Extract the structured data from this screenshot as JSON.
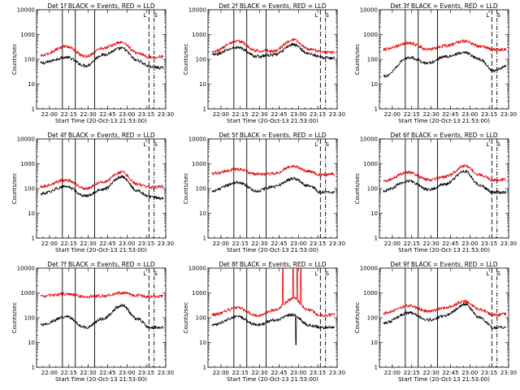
{
  "chart_data": [
    {
      "type": "line",
      "title": "Det 1f BLACK = Events, RED = LLD",
      "xlabel": "Start Time (20-Oct-13 21:53:00)",
      "ylabel": "Counts/sec",
      "ylim": [
        1,
        10000
      ],
      "yscale": "log",
      "xlim_min": [
        -3,
        97
      ],
      "x_tick_labels": [
        "22:00",
        "22:15",
        "22:30",
        "22:45",
        "23:00",
        "23:15",
        "23:30"
      ],
      "x_tick_minutes": [
        7,
        22,
        37,
        52,
        67,
        82,
        97
      ],
      "y_tick_labels": [
        "1",
        "10",
        "100",
        "1000",
        "10000"
      ],
      "vlines_solid_min": [
        17,
        27,
        42
      ],
      "vlines_dashed_min": [
        84
      ],
      "vlines_dashdot_min": [
        88
      ],
      "panel_markers": [
        "L",
        "S"
      ],
      "series": [
        {
          "name": "Events",
          "color": "#000000",
          "key_x": [
            0,
            20,
            35,
            48,
            63,
            75,
            85,
            95
          ],
          "key_y": [
            70,
            120,
            55,
            150,
            280,
            90,
            50,
            45
          ]
        },
        {
          "name": "LLD",
          "color": "#e00000",
          "key_x": [
            0,
            20,
            35,
            48,
            63,
            75,
            85,
            95
          ],
          "key_y": [
            140,
            330,
            130,
            280,
            480,
            180,
            120,
            130
          ]
        }
      ]
    },
    {
      "type": "line",
      "title": "Det 2f BLACK = Events, RED = LLD",
      "xlabel": "Start Time (20-Oct-13 21:53:00)",
      "ylabel": "Counts/sec",
      "ylim": [
        1,
        10000
      ],
      "yscale": "log",
      "xlim_min": [
        -3,
        97
      ],
      "x_tick_labels": [
        "22:00",
        "22:15",
        "22:30",
        "22:45",
        "23:00",
        "23:15",
        "23:30"
      ],
      "x_tick_minutes": [
        7,
        22,
        37,
        52,
        67,
        82,
        97
      ],
      "y_tick_labels": [
        "1",
        "10",
        "100",
        "1000",
        "10000"
      ],
      "vlines_solid_min": [
        17,
        27,
        42
      ],
      "vlines_dashed_min": [
        84
      ],
      "vlines_dashdot_min": [
        88
      ],
      "panel_markers": [
        "L",
        "S"
      ],
      "series": [
        {
          "name": "Events",
          "color": "#000000",
          "key_x": [
            0,
            20,
            35,
            48,
            63,
            75,
            85,
            95
          ],
          "key_y": [
            150,
            300,
            130,
            150,
            400,
            170,
            120,
            110
          ]
        },
        {
          "name": "LLD",
          "color": "#e00000",
          "key_x": [
            0,
            20,
            35,
            48,
            63,
            75,
            85,
            95
          ],
          "key_y": [
            200,
            550,
            220,
            220,
            600,
            260,
            200,
            190
          ]
        }
      ]
    },
    {
      "type": "line",
      "title": "Det 3f BLACK = Events, RED = LLD",
      "xlabel": "Start Time (20-Oct-13 21:53:00)",
      "ylabel": "Counts/sec",
      "ylim": [
        1,
        10000
      ],
      "yscale": "log",
      "xlim_min": [
        -3,
        97
      ],
      "x_tick_labels": [
        "22:00",
        "22:15",
        "22:30",
        "22:45",
        "23:00",
        "23:15",
        "23:30"
      ],
      "x_tick_minutes": [
        7,
        22,
        37,
        52,
        67,
        82,
        97
      ],
      "y_tick_labels": [
        "1",
        "10",
        "100",
        "1000",
        "10000"
      ],
      "vlines_solid_min": [
        17,
        27,
        42
      ],
      "vlines_dashed_min": [
        84
      ],
      "vlines_dashdot_min": [
        88
      ],
      "panel_markers": [
        "L",
        "S"
      ],
      "series": [
        {
          "name": "Events",
          "color": "#000000",
          "key_x": [
            0,
            20,
            35,
            48,
            63,
            75,
            85,
            95
          ],
          "key_y": [
            20,
            120,
            70,
            130,
            180,
            100,
            35,
            50
          ]
        },
        {
          "name": "LLD",
          "color": "#e00000",
          "key_x": [
            0,
            20,
            35,
            48,
            63,
            75,
            85,
            95
          ],
          "key_y": [
            250,
            450,
            250,
            350,
            550,
            330,
            250,
            250
          ]
        }
      ]
    },
    {
      "type": "line",
      "title": "Det 4f BLACK = Events, RED = LLD",
      "xlabel": "Start Time (20-Oct-13 21:53:00)",
      "ylabel": "Counts/sec",
      "ylim": [
        1,
        10000
      ],
      "yscale": "log",
      "xlim_min": [
        -3,
        97
      ],
      "x_tick_labels": [
        "22:00",
        "22:15",
        "22:30",
        "22:45",
        "23:00",
        "23:15",
        "23:30"
      ],
      "x_tick_minutes": [
        7,
        22,
        37,
        52,
        67,
        82,
        97
      ],
      "y_tick_labels": [
        "1",
        "10",
        "100",
        "1000",
        "10000"
      ],
      "vlines_solid_min": [
        17,
        27,
        42
      ],
      "vlines_dashed_min": [
        84
      ],
      "vlines_dashdot_min": [
        88
      ],
      "panel_markers": [
        "L",
        "S"
      ],
      "series": [
        {
          "name": "Events",
          "color": "#000000",
          "key_x": [
            0,
            20,
            35,
            48,
            63,
            75,
            85,
            95
          ],
          "key_y": [
            60,
            120,
            50,
            90,
            300,
            80,
            45,
            40
          ]
        },
        {
          "name": "LLD",
          "color": "#e00000",
          "key_x": [
            0,
            20,
            35,
            48,
            63,
            75,
            85,
            95
          ],
          "key_y": [
            120,
            220,
            100,
            180,
            450,
            150,
            110,
            120
          ]
        }
      ]
    },
    {
      "type": "line",
      "title": "Det 5f BLACK = Events, RED = LLD",
      "xlabel": "Start Time (20-Oct-13 21:53:00)",
      "ylabel": "Counts/sec",
      "ylim": [
        1,
        10000
      ],
      "yscale": "log",
      "xlim_min": [
        -3,
        97
      ],
      "x_tick_labels": [
        "22:00",
        "22:15",
        "22:30",
        "22:45",
        "23:00",
        "23:15",
        "23:30"
      ],
      "x_tick_minutes": [
        7,
        22,
        37,
        52,
        67,
        82,
        97
      ],
      "y_tick_labels": [
        "1",
        "10",
        "100",
        "1000",
        "10000"
      ],
      "vlines_solid_min": [
        17,
        27,
        42
      ],
      "vlines_dashed_min": [
        84
      ],
      "vlines_dashdot_min": [
        88
      ],
      "panel_markers": [
        "L",
        "S"
      ],
      "series": [
        {
          "name": "Events",
          "color": "#000000",
          "key_x": [
            0,
            20,
            35,
            48,
            63,
            75,
            85,
            95
          ],
          "key_y": [
            80,
            180,
            80,
            120,
            250,
            130,
            70,
            70
          ]
        },
        {
          "name": "LLD",
          "color": "#e00000",
          "key_x": [
            0,
            20,
            35,
            48,
            63,
            75,
            85,
            95
          ],
          "key_y": [
            400,
            600,
            380,
            400,
            800,
            500,
            350,
            380
          ]
        }
      ]
    },
    {
      "type": "line",
      "title": "Det 6f BLACK = Events, RED = LLD",
      "xlabel": "Start Time (20-Oct-13 21:53:00)",
      "ylabel": "Counts/sec",
      "ylim": [
        1,
        10000
      ],
      "yscale": "log",
      "xlim_min": [
        -3,
        97
      ],
      "x_tick_labels": [
        "22:00",
        "22:15",
        "22:30",
        "22:45",
        "23:00",
        "23:15",
        "23:30"
      ],
      "x_tick_minutes": [
        7,
        22,
        37,
        52,
        67,
        82,
        97
      ],
      "y_tick_labels": [
        "1",
        "10",
        "100",
        "1000",
        "10000"
      ],
      "vlines_solid_min": [
        17,
        27,
        42
      ],
      "vlines_dashed_min": [
        84
      ],
      "vlines_dashdot_min": [
        88
      ],
      "panel_markers": [
        "L",
        "S"
      ],
      "series": [
        {
          "name": "Events",
          "color": "#000000",
          "key_x": [
            0,
            20,
            35,
            48,
            63,
            75,
            85,
            95
          ],
          "key_y": [
            80,
            200,
            90,
            150,
            500,
            130,
            70,
            70
          ]
        },
        {
          "name": "LLD",
          "color": "#e00000",
          "key_x": [
            0,
            20,
            35,
            48,
            63,
            75,
            85,
            95
          ],
          "key_y": [
            200,
            450,
            220,
            300,
            800,
            350,
            220,
            230
          ]
        }
      ]
    },
    {
      "type": "line",
      "title": "Det 7f BLACK = Events, RED = LLD",
      "xlabel": "Start Time (20-Oct-13 21:53:00)",
      "ylabel": "Counts/sec",
      "ylim": [
        1,
        10000
      ],
      "yscale": "log",
      "xlim_min": [
        -3,
        97
      ],
      "x_tick_labels": [
        "22:00",
        "22:15",
        "22:30",
        "22:45",
        "23:00",
        "23:15",
        "23:30"
      ],
      "x_tick_minutes": [
        7,
        22,
        37,
        52,
        67,
        82,
        97
      ],
      "y_tick_labels": [
        "1",
        "10",
        "100",
        "1000",
        "10000"
      ],
      "vlines_solid_min": [
        17,
        27,
        42
      ],
      "vlines_dashed_min": [
        84
      ],
      "vlines_dashdot_min": [
        88
      ],
      "panel_markers": [
        "L",
        "S"
      ],
      "series": [
        {
          "name": "Events",
          "color": "#000000",
          "key_x": [
            0,
            20,
            35,
            48,
            63,
            75,
            85,
            95
          ],
          "key_y": [
            50,
            110,
            40,
            90,
            320,
            90,
            40,
            40
          ]
        },
        {
          "name": "LLD",
          "color": "#e00000",
          "key_x": [
            0,
            20,
            35,
            48,
            63,
            75,
            85,
            95
          ],
          "key_y": [
            750,
            900,
            700,
            750,
            1000,
            800,
            700,
            720
          ]
        }
      ]
    },
    {
      "type": "line",
      "title": "Det 8f BLACK = Events, RED = LLD",
      "xlabel": "Start Time (20-Oct-13 21:53:00)",
      "ylabel": "Counts/sec",
      "ylim": [
        1,
        10000
      ],
      "yscale": "log",
      "xlim_min": [
        -3,
        97
      ],
      "x_tick_labels": [
        "22:00",
        "22:15",
        "22:30",
        "22:45",
        "23:00",
        "23:15",
        "23:30"
      ],
      "x_tick_minutes": [
        7,
        22,
        37,
        52,
        67,
        82,
        97
      ],
      "y_tick_labels": [
        "1",
        "10",
        "100",
        "1000",
        "10000"
      ],
      "vlines_solid_min": [
        17,
        27,
        42
      ],
      "vlines_dashed_min": [
        84
      ],
      "vlines_dashdot_min": [
        88
      ],
      "panel_markers": [
        "L",
        "S"
      ],
      "series": [
        {
          "name": "Events",
          "color": "#000000",
          "key_x": [
            0,
            20,
            35,
            48,
            63,
            75,
            85,
            95
          ],
          "key_y": [
            50,
            110,
            50,
            80,
            130,
            50,
            40,
            40
          ]
        },
        {
          "name": "LLD",
          "color": "#e00000",
          "key_x": [
            0,
            20,
            35,
            48,
            63,
            75,
            85,
            95
          ],
          "key_y": [
            130,
            250,
            120,
            200,
            600,
            200,
            120,
            130
          ]
        }
      ],
      "spikes": [
        {
          "series": "LLD",
          "x": [
            55,
            63,
            66,
            69
          ],
          "y": 10000
        },
        {
          "series": "Events",
          "x": [
            65
          ],
          "y": 8
        }
      ]
    },
    {
      "type": "line",
      "title": "Det 9f BLACK = Events, RED = LLD",
      "xlabel": "Start Time (20-Oct-13 21:53:00)",
      "ylabel": "Counts/sec",
      "ylim": [
        1,
        10000
      ],
      "yscale": "log",
      "xlim_min": [
        -3,
        97
      ],
      "x_tick_labels": [
        "22:00",
        "22:15",
        "22:30",
        "22:45",
        "23:00",
        "23:15",
        "23:30"
      ],
      "x_tick_minutes": [
        7,
        22,
        37,
        52,
        67,
        82,
        97
      ],
      "y_tick_labels": [
        "1",
        "10",
        "100",
        "1000",
        "10000"
      ],
      "vlines_solid_min": [
        17,
        27,
        42
      ],
      "vlines_dashed_min": [
        84
      ],
      "vlines_dashdot_min": [
        88
      ],
      "panel_markers": [
        "L",
        "S"
      ],
      "series": [
        {
          "name": "Events",
          "color": "#000000",
          "key_x": [
            0,
            20,
            35,
            48,
            63,
            75,
            85,
            95
          ],
          "key_y": [
            60,
            160,
            80,
            120,
            350,
            100,
            40,
            40
          ]
        },
        {
          "name": "LLD",
          "color": "#e00000",
          "key_x": [
            0,
            20,
            35,
            48,
            63,
            75,
            85,
            95
          ],
          "key_y": [
            150,
            300,
            180,
            250,
            450,
            220,
            130,
            140
          ]
        }
      ]
    }
  ]
}
